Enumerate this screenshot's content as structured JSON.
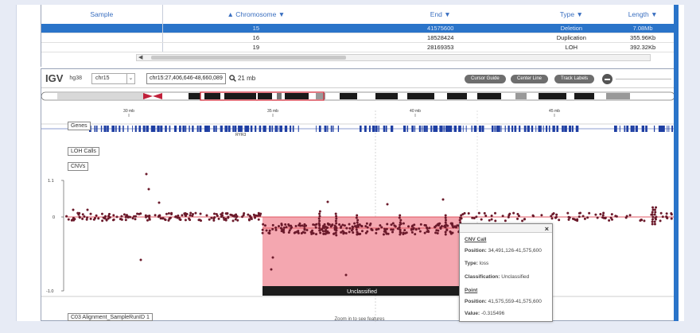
{
  "table": {
    "headers": [
      "Sample",
      "Chromosome",
      "End",
      "Type",
      "Length"
    ],
    "rows": [
      {
        "chromosome": "15",
        "end": "41575600",
        "type": "Deletion",
        "length": "7.08Mb",
        "selected": true
      },
      {
        "chromosome": "16",
        "end": "18528424",
        "type": "Duplication",
        "length": "355.96Kb",
        "selected": false
      },
      {
        "chromosome": "19",
        "end": "28169353",
        "type": "LOH",
        "length": "392.32Kb",
        "selected": false
      }
    ]
  },
  "igv": {
    "logo": "IGV",
    "genome": "hg38",
    "chromosome_select": "chr15",
    "locus": "chr15:27,406,646-48,660,089",
    "zoom_label": "21 mb",
    "buttons": {
      "cursor_guide": "Cursor Guide",
      "center_line": "Center Line",
      "track_labels": "Track Labels"
    },
    "ruler_ticks": [
      "30 mb",
      "35 mb",
      "40 mb",
      "45 mb"
    ],
    "tracks": {
      "genes": "Genes",
      "gene_name": "RYR3",
      "loh": "LOH Calls",
      "cnvs": "CNVs",
      "alignment": "C03 Alignment_SampleRunID 1"
    },
    "y_axis": [
      "1.1",
      "0",
      "-1.0"
    ],
    "region_label": "Unclassified",
    "bottom_hint": "Zoom in to see features"
  },
  "popup": {
    "close": "×",
    "cnv_title": "CNV Call",
    "position_label": "Position:",
    "position_value": "34,491,126-41,575,600",
    "type_label": "Type:",
    "type_value": "loss",
    "class_label": "Classification:",
    "class_value": "Unclassified",
    "point_title": "Point",
    "point_position_label": "Position:",
    "point_position_value": "41,575,559-41,575,600",
    "value_label": "Value:",
    "value_value": "-0.315496"
  },
  "colors": {
    "selected_row": "#2a74c9",
    "cnv_loss": "#f4a7b0",
    "points": "#6b1a2b",
    "gene": "#1f3fa3",
    "baseline": "#e05560"
  }
}
